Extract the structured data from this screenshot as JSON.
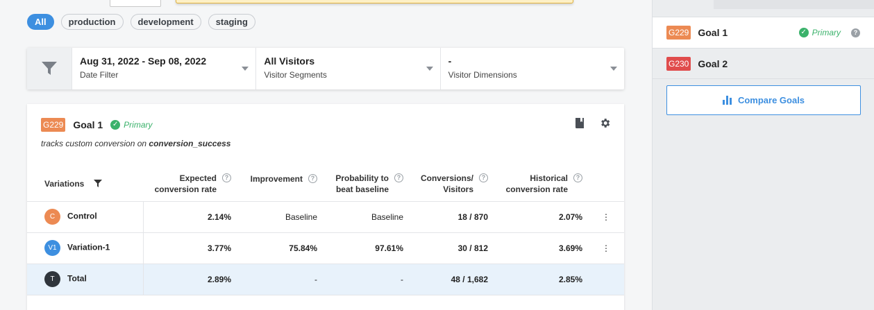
{
  "environments": [
    "All",
    "production",
    "development",
    "staging"
  ],
  "filters": [
    {
      "value": "Aug 31, 2022 - Sep 08, 2022",
      "label": "Date Filter"
    },
    {
      "value": "All Visitors",
      "label": "Visitor Segments"
    },
    {
      "value": "-",
      "label": "Visitor Dimensions"
    }
  ],
  "goal": {
    "id": "G229",
    "name": "Goal 1",
    "primary_label": "Primary",
    "description_prefix": "tracks custom conversion on",
    "description_event": "conversion_success"
  },
  "table": {
    "headers": {
      "variations": "Variations",
      "expected": "Expected conversion rate",
      "improvement": "Improvement",
      "probability": "Probability to beat baseline",
      "conversions": "Conversions/ Visitors",
      "historical": "Historical conversion rate"
    },
    "rows": [
      {
        "badge": "C",
        "badge_color": "#ec8a53",
        "name": "Control",
        "expected": "2.14%",
        "improvement": "Baseline",
        "probability": "Baseline",
        "conversions": "18 / 870",
        "historical": "2.07%"
      },
      {
        "badge": "V1",
        "badge_color": "#3d8fe0",
        "name": "Variation-1",
        "expected": "3.77%",
        "improvement": "75.84%",
        "probability": "97.61%",
        "conversions": "30 / 812",
        "historical": "3.69%"
      },
      {
        "badge": "T",
        "badge_color": "#2f353c",
        "name": "Total",
        "expected": "2.89%",
        "improvement": "-",
        "probability": "-",
        "conversions": "48 / 1,682",
        "historical": "2.85%"
      }
    ]
  },
  "sidebar": {
    "goals": [
      {
        "id": "G229",
        "name": "Goal 1",
        "primary_label": "Primary",
        "badge_color": "#ec8a53"
      },
      {
        "id": "G230",
        "name": "Goal 2",
        "badge_color": "#e04c4c"
      }
    ],
    "compare_label": "Compare Goals"
  },
  "colors": {
    "accent": "#3d8fe0",
    "success": "#3bb26b"
  }
}
